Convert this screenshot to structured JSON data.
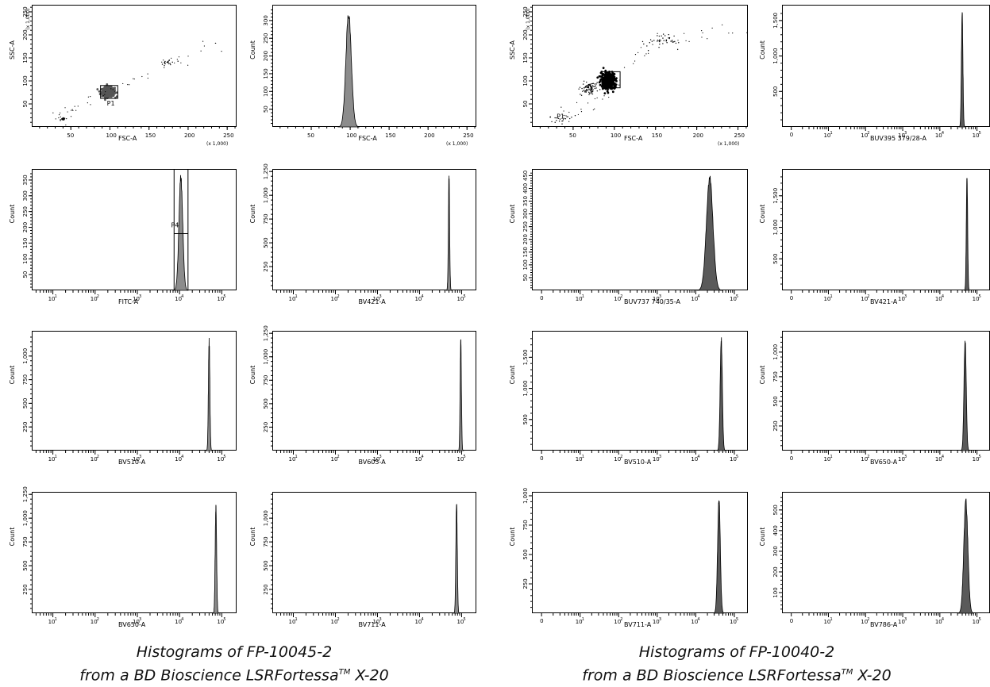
{
  "colors": {
    "fill_left": "#8c8c8c",
    "fill_right": "#5a5a5a",
    "dots": "#000000",
    "axis": "#000000"
  },
  "captions": {
    "left": {
      "line1": "Histograms of FP-10045-2",
      "line2": "from a BD Bioscience LSRFortessa",
      "tm": "TM",
      "line2_end": " X-20"
    },
    "right": {
      "line1": "Histograms of FP-10040-2",
      "line2": "from a BD Bioscience LSRFortessa",
      "tm": "TM",
      "line2_end": " X-20"
    }
  },
  "chart_data": [
    {
      "id": "L1",
      "type": "scatter",
      "xlabel": "FSC-A",
      "ylabel": "SSC-A",
      "xmult": "(x 1,000)",
      "ymult": "(x 1,000)",
      "xlim": [
        0,
        262
      ],
      "ylim": [
        0,
        262
      ],
      "xticks": [
        50,
        100,
        150,
        200,
        250
      ],
      "yticks": [
        50,
        100,
        150,
        200,
        250
      ],
      "gate": {
        "label": "P1",
        "x": [
          88,
          110
        ],
        "y": [
          62,
          90
        ]
      },
      "clusters": [
        {
          "cx": 98,
          "cy": 76,
          "sx": 4,
          "sy": 5,
          "n": 420,
          "dense": true
        },
        {
          "cx": 40,
          "cy": 17,
          "sx": 1.5,
          "sy": 1.2,
          "n": 25
        },
        {
          "cx": 175,
          "cy": 140,
          "sx": 5,
          "sy": 4,
          "n": 18
        }
      ],
      "trail": [
        [
          25,
          20
        ],
        [
          45,
          28
        ],
        [
          70,
          50
        ],
        [
          110,
          90
        ],
        [
          150,
          120
        ],
        [
          190,
          145
        ],
        [
          250,
          200
        ]
      ]
    },
    {
      "id": "L2",
      "type": "histogram",
      "xlabel": "FSC-A",
      "ylabel": "Count",
      "xscale": "linear",
      "xmult": "(x 1,000)",
      "xlim": [
        0,
        262
      ],
      "ylim": [
        0,
        340
      ],
      "xticks": [
        50,
        100,
        150,
        200,
        250
      ],
      "yticks": [
        50,
        100,
        150,
        200,
        250,
        300
      ],
      "peak": {
        "center": 98,
        "width": 3.5,
        "height": 330
      }
    },
    {
      "id": "L3",
      "type": "histogram",
      "xlabel": "FITC-A",
      "ylabel": "Count",
      "xscale": "log",
      "ylim": [
        0,
        380
      ],
      "yticks": [
        50,
        100,
        150,
        200,
        250,
        300,
        350
      ],
      "peak": {
        "center": 4.03,
        "width": 0.045,
        "height": 370
      },
      "gate": {
        "label": "P4",
        "from": 3.87,
        "to": 4.2,
        "y": 180
      }
    },
    {
      "id": "L4",
      "type": "histogram",
      "xlabel": "BV421-A",
      "ylabel": "Count",
      "xscale": "log",
      "ylim": [
        0,
        1260
      ],
      "yticks": [
        250,
        500,
        750,
        1000,
        1250
      ],
      "peak": {
        "center": 4.7,
        "width": 0.015,
        "height": 1220
      }
    },
    {
      "id": "L5",
      "type": "histogram",
      "xlabel": "BV510-A",
      "ylabel": "Count",
      "xscale": "log",
      "ylim": [
        0,
        1250
      ],
      "yticks": [
        250,
        500,
        750,
        1000
      ],
      "peak": {
        "center": 4.7,
        "width": 0.017,
        "height": 1200
      }
    },
    {
      "id": "L6",
      "type": "histogram",
      "xlabel": "BV605-A",
      "ylabel": "Count",
      "xscale": "log",
      "ylim": [
        0,
        1260
      ],
      "yticks": [
        250,
        500,
        750,
        1000,
        1250
      ],
      "peak": {
        "center": 4.98,
        "width": 0.015,
        "height": 1220
      }
    },
    {
      "id": "L7",
      "type": "histogram",
      "xlabel": "BV650-A",
      "ylabel": "Count",
      "xscale": "log",
      "ylim": [
        0,
        1260
      ],
      "yticks": [
        250,
        500,
        750,
        1000,
        1250
      ],
      "peak": {
        "center": 4.86,
        "width": 0.017,
        "height": 1150
      }
    },
    {
      "id": "L8",
      "type": "histogram",
      "xlabel": "BV711-A",
      "ylabel": "Count",
      "xscale": "log",
      "ylim": [
        0,
        1260
      ],
      "yticks": [
        250,
        500,
        750,
        1000
      ],
      "peak": {
        "center": 4.88,
        "width": 0.017,
        "height": 1190
      }
    },
    {
      "id": "R1",
      "type": "scatter",
      "xlabel": "FSC-A",
      "ylabel": "SSC-A",
      "xmult": "(x 1,000)",
      "ymult": "(x 1,000)",
      "xlim": [
        0,
        262
      ],
      "ylim": [
        0,
        262
      ],
      "xticks": [
        50,
        100,
        150,
        200,
        250
      ],
      "yticks": [
        50,
        100,
        150,
        200,
        250
      ],
      "gate": {
        "label": "P1",
        "x": [
          85,
          107
        ],
        "y": [
          85,
          120
        ]
      },
      "clusters": [
        {
          "cx": 93,
          "cy": 100,
          "sx": 4,
          "sy": 8,
          "n": 520,
          "dense": true
        },
        {
          "cx": 70,
          "cy": 85,
          "sx": 5,
          "sy": 7,
          "n": 90
        },
        {
          "cx": 160,
          "cy": 185,
          "sx": 10,
          "sy": 8,
          "n": 40
        },
        {
          "cx": 35,
          "cy": 20,
          "sx": 8,
          "sy": 5,
          "n": 20
        }
      ],
      "trail": [
        [
          30,
          15
        ],
        [
          60,
          40
        ],
        [
          90,
          70
        ],
        [
          120,
          140
        ],
        [
          160,
          190
        ],
        [
          210,
          200
        ],
        [
          260,
          220
        ]
      ]
    },
    {
      "id": "R2",
      "type": "histogram",
      "xlabel": "BUV395 379/28-A",
      "ylabel": "Count",
      "xscale": "log",
      "zero_tick": true,
      "ylim": [
        0,
        1700
      ],
      "yticks": [
        500,
        1000,
        1500
      ],
      "peak": {
        "center": 4.6,
        "width": 0.02,
        "height": 1660
      }
    },
    {
      "id": "R3",
      "type": "histogram",
      "xlabel": "BUV737 740/35-A",
      "ylabel": "Count",
      "xscale": "log",
      "zero_tick": true,
      "ylim": [
        0,
        470
      ],
      "yticks": [
        50,
        100,
        150,
        200,
        250,
        300,
        350,
        400,
        450
      ],
      "peak": {
        "center": 4.36,
        "width": 0.085,
        "height": 455
      }
    },
    {
      "id": "R4",
      "type": "histogram",
      "xlabel": "BV421-A",
      "ylabel": "Count",
      "xscale": "log",
      "zero_tick": true,
      "ylim": [
        0,
        1900
      ],
      "yticks": [
        500,
        1000,
        1500
      ],
      "peak": {
        "center": 4.73,
        "width": 0.018,
        "height": 1860
      }
    },
    {
      "id": "R5",
      "type": "histogram",
      "xlabel": "BV510-A",
      "ylabel": "Count",
      "xscale": "log",
      "zero_tick": true,
      "ylim": [
        0,
        1900
      ],
      "yticks": [
        500,
        1000,
        1500
      ],
      "peak": {
        "center": 4.66,
        "width": 0.028,
        "height": 1840
      }
    },
    {
      "id": "R6",
      "type": "histogram",
      "xlabel": "BV650-A",
      "ylabel": "Count",
      "xscale": "log",
      "zero_tick": true,
      "ylim": [
        0,
        1200
      ],
      "yticks": [
        250,
        500,
        750,
        1000
      ],
      "peak": {
        "center": 4.68,
        "width": 0.03,
        "height": 1160
      }
    },
    {
      "id": "R7",
      "type": "histogram",
      "xlabel": "BV711-A",
      "ylabel": "Count",
      "xscale": "log",
      "zero_tick": true,
      "ylim": [
        0,
        1020
      ],
      "yticks": [
        250,
        500,
        750,
        1000
      ],
      "peak": {
        "center": 4.6,
        "width": 0.035,
        "height": 990
      }
    },
    {
      "id": "R8",
      "type": "histogram",
      "xlabel": "BV786-A",
      "ylabel": "Count",
      "xscale": "log",
      "zero_tick": true,
      "ylim": [
        0,
        580
      ],
      "yticks": [
        100,
        200,
        300,
        400,
        500
      ],
      "peak": {
        "center": 4.7,
        "width": 0.055,
        "height": 560
      }
    }
  ]
}
